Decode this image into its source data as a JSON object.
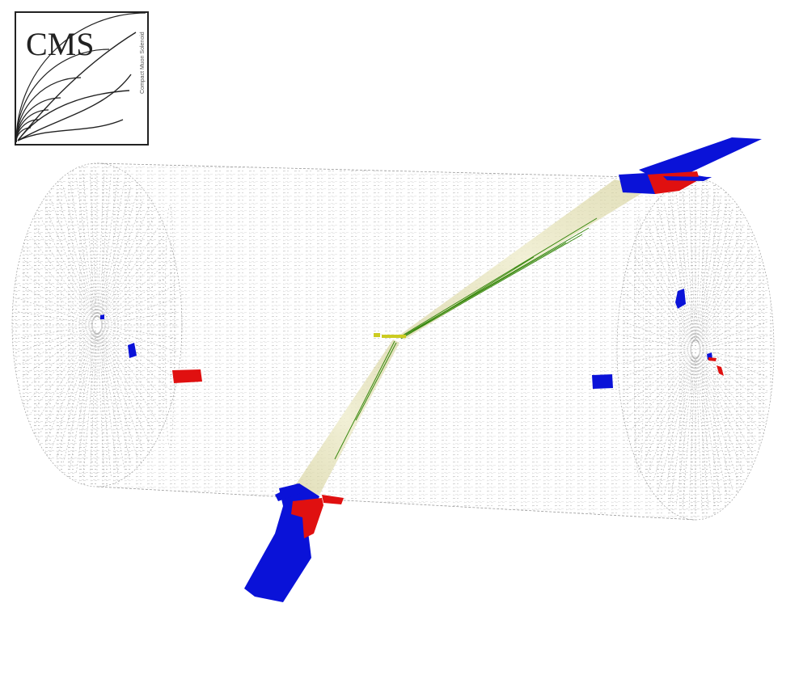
{
  "logo": {
    "title": "CMS",
    "subtitle": "Compact Muon Solenoid"
  },
  "colors": {
    "ecal": "#e01010",
    "hcal": "#0a12d8",
    "track": "#3a8a10",
    "jet_cone": "#e8e4b0",
    "vertex": "#cccc22",
    "mesh": "#9a9a9a"
  }
}
